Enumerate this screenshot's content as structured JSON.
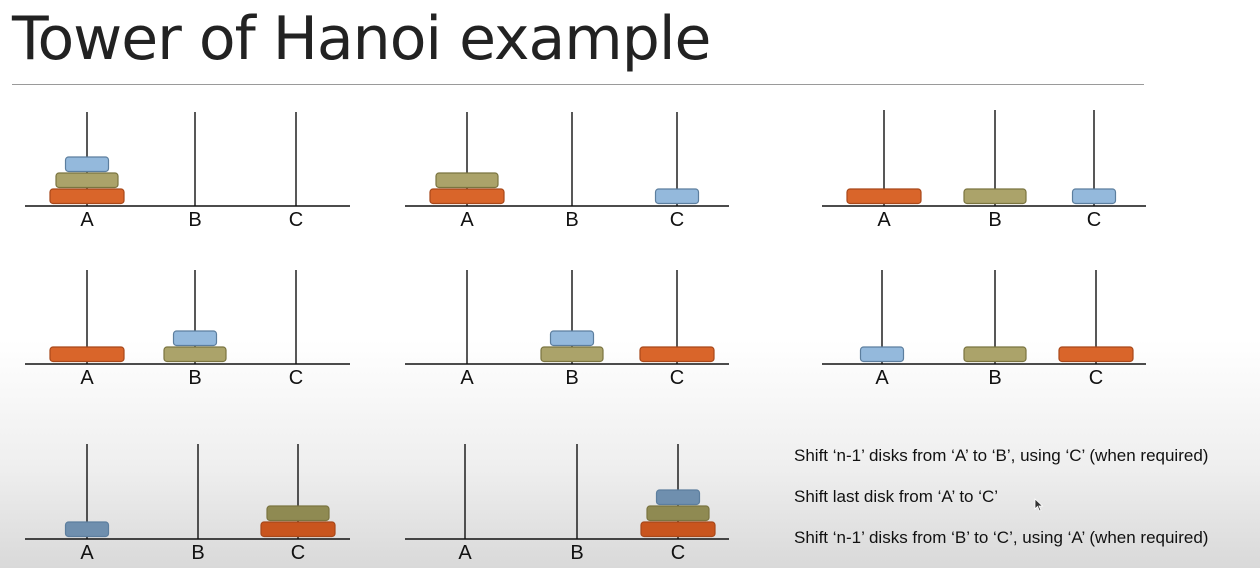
{
  "title": "Tower of Hanoi example",
  "colors": {
    "large_disk": "#d9652a",
    "medium_disk": "#aba36a",
    "small_disk": "#94b9dc",
    "small_disk_dim": "#6f8fae",
    "peg": "#111111"
  },
  "panels": [
    {
      "pegs": [
        {
          "label": "A",
          "disks": [
            "large",
            "medium",
            "small"
          ]
        },
        {
          "label": "B",
          "disks": []
        },
        {
          "label": "C",
          "disks": []
        }
      ]
    },
    {
      "pegs": [
        {
          "label": "A",
          "disks": [
            "large",
            "medium"
          ]
        },
        {
          "label": "B",
          "disks": []
        },
        {
          "label": "C",
          "disks": [
            "small"
          ]
        }
      ]
    },
    {
      "pegs": [
        {
          "label": "A",
          "disks": [
            "large"
          ]
        },
        {
          "label": "B",
          "disks": [
            "medium"
          ]
        },
        {
          "label": "C",
          "disks": [
            "small"
          ]
        }
      ]
    },
    {
      "pegs": [
        {
          "label": "A",
          "disks": [
            "large"
          ]
        },
        {
          "label": "B",
          "disks": [
            "medium",
            "small"
          ]
        },
        {
          "label": "C",
          "disks": []
        }
      ]
    },
    {
      "pegs": [
        {
          "label": "A",
          "disks": []
        },
        {
          "label": "B",
          "disks": [
            "medium",
            "small"
          ]
        },
        {
          "label": "C",
          "disks": [
            "large"
          ]
        }
      ]
    },
    {
      "pegs": [
        {
          "label": "A",
          "disks": [
            "small"
          ]
        },
        {
          "label": "B",
          "disks": [
            "medium"
          ]
        },
        {
          "label": "C",
          "disks": [
            "large"
          ]
        }
      ]
    },
    {
      "pegs": [
        {
          "label": "A",
          "disks": [
            "small"
          ]
        },
        {
          "label": "B",
          "disks": []
        },
        {
          "label": "C",
          "disks": [
            "large",
            "medium"
          ]
        }
      ]
    },
    {
      "pegs": [
        {
          "label": "A",
          "disks": []
        },
        {
          "label": "B",
          "disks": []
        },
        {
          "label": "C",
          "disks": [
            "large",
            "medium",
            "small"
          ]
        }
      ]
    }
  ],
  "notes": [
    "Shift ‘n-1’ disks from ‘A’ to ‘B’, using ‘C’ (when required)",
    "Shift last disk from ‘A’ to ‘C’",
    "Shift ‘n-1’ disks from ‘B’ to ‘C’, using ‘A’ (when required)"
  ]
}
